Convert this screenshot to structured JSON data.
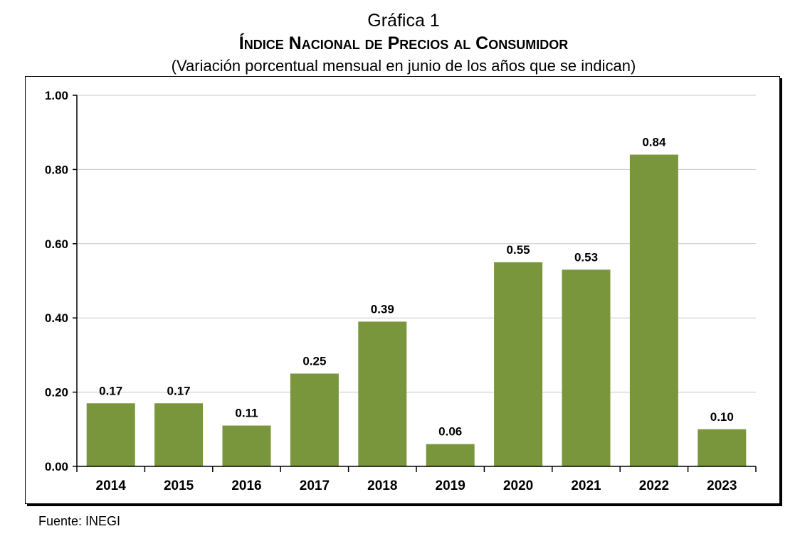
{
  "header": {
    "label": "Gráfica 1",
    "title": "Índice Nacional de Precios al Consumidor",
    "subtitle": "(Variación porcentual mensual en junio de los años que se indican)"
  },
  "footer": {
    "source": "Fuente: INEGI"
  },
  "chart_data": {
    "type": "bar",
    "title": "Índice Nacional de Precios al Consumidor",
    "subtitle": "(Variación porcentual mensual en junio de los años que se indican)",
    "categories": [
      "2014",
      "2015",
      "2016",
      "2017",
      "2018",
      "2019",
      "2020",
      "2021",
      "2022",
      "2023"
    ],
    "values": [
      0.17,
      0.17,
      0.11,
      0.25,
      0.39,
      0.06,
      0.55,
      0.53,
      0.84,
      0.1
    ],
    "data_labels": [
      "0.17",
      "0.17",
      "0.11",
      "0.25",
      "0.39",
      "0.06",
      "0.55",
      "0.53",
      "0.84",
      "0.10"
    ],
    "xlabel": "",
    "ylabel": "",
    "ylim": [
      0,
      1
    ],
    "yticks": [
      "0.00",
      "0.20",
      "0.40",
      "0.60",
      "0.80",
      "1.00"
    ],
    "grid": true,
    "legend": false,
    "bar_color": "#79963c",
    "grid_color": "#c8c8c8"
  }
}
